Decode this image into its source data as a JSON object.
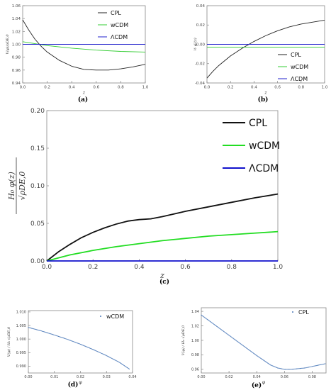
{
  "chart_data": [
    {
      "id": "a",
      "type": "line",
      "caption": "(a)",
      "xlabel": "z",
      "ylabel": "V(φ)/ρDE,0",
      "xlim": [
        0,
        1
      ],
      "ylim": [
        0.94,
        1.06
      ],
      "xticks": [
        0.0,
        0.2,
        0.4,
        0.6,
        0.8,
        1.0
      ],
      "xtick_labels": [
        "0.0",
        "0.2",
        "0.4",
        "0.6",
        "0.8",
        "1.0"
      ],
      "yticks": [
        0.94,
        0.96,
        0.98,
        1.0,
        1.02,
        1.04,
        1.06
      ],
      "ytick_labels": [
        "0.94",
        "0.96",
        "0.98",
        "1.00",
        "1.02",
        "1.04",
        "1.06"
      ],
      "legend_position": "top-right",
      "series": [
        {
          "name": "CPL",
          "color": "#222222",
          "x": [
            0,
            0.05,
            0.1,
            0.15,
            0.2,
            0.3,
            0.4,
            0.5,
            0.6,
            0.7,
            0.8,
            0.9,
            1.0
          ],
          "y": [
            1.038,
            1.022,
            1.008,
            0.997,
            0.988,
            0.975,
            0.966,
            0.961,
            0.96,
            0.96,
            0.962,
            0.965,
            0.969
          ]
        },
        {
          "name": "wCDM",
          "color": "#33cc33",
          "x": [
            0,
            0.1,
            0.2,
            0.4,
            0.6,
            0.8,
            1.0
          ],
          "y": [
            1.004,
            1.001,
            0.998,
            0.994,
            0.991,
            0.989,
            0.988
          ]
        },
        {
          "name": "ΛCDM",
          "color": "#2222cc",
          "x": [
            0,
            1.0
          ],
          "y": [
            1.0,
            1.0
          ]
        }
      ]
    },
    {
      "id": "b",
      "type": "line",
      "caption": "(b)",
      "xlabel": "z",
      "ylabel": "½ φ̇²(z)",
      "xlim": [
        0,
        1
      ],
      "ylim": [
        -0.04,
        0.04
      ],
      "xticks": [
        0.0,
        0.2,
        0.4,
        0.6,
        0.8,
        1.0
      ],
      "xtick_labels": [
        "0.0",
        "0.2",
        "0.4",
        "0.6",
        "0.8",
        "1.0"
      ],
      "yticks": [
        -0.04,
        -0.02,
        0.0,
        0.02,
        0.04
      ],
      "ytick_labels": [
        "-0.04",
        "-0.02",
        "0.00",
        "0.02",
        "0.04"
      ],
      "legend_position": "bottom-right",
      "series": [
        {
          "name": "CPL",
          "color": "#222222",
          "x": [
            0,
            0.05,
            0.1,
            0.2,
            0.3,
            0.4,
            0.5,
            0.6,
            0.7,
            0.8,
            0.9,
            1.0
          ],
          "y": [
            -0.035,
            -0.028,
            -0.022,
            -0.012,
            -0.004,
            0.003,
            0.009,
            0.014,
            0.018,
            0.021,
            0.023,
            0.025
          ]
        },
        {
          "name": "wCDM",
          "color": "#33cc33",
          "x": [
            0,
            1.0
          ],
          "y": [
            -0.003,
            -0.003
          ]
        },
        {
          "name": "ΛCDM",
          "color": "#2222cc",
          "x": [
            0,
            1.0
          ],
          "y": [
            0.0,
            0.0
          ]
        }
      ]
    },
    {
      "id": "c",
      "type": "line",
      "caption": "(c)",
      "xlabel": "z",
      "ylabel_num": "H₀ φ(z)",
      "ylabel_den": "√ρDE,0",
      "xlim": [
        0,
        1
      ],
      "ylim": [
        0,
        0.2
      ],
      "xticks": [
        0.0,
        0.2,
        0.4,
        0.6,
        0.8,
        1.0
      ],
      "xtick_labels": [
        "0.0",
        "0.2",
        "0.4",
        "0.6",
        "0.8",
        "1.0"
      ],
      "yticks": [
        0.0,
        0.05,
        0.1,
        0.15,
        0.2
      ],
      "ytick_labels": [
        "0.00",
        "0.05",
        "0.10",
        "0.15",
        "0.20"
      ],
      "legend_position": "top-right",
      "series": [
        {
          "name": "CPL",
          "color": "#111111",
          "x": [
            0,
            0.05,
            0.1,
            0.15,
            0.2,
            0.25,
            0.3,
            0.35,
            0.4,
            0.45,
            0.5,
            0.6,
            0.7,
            0.8,
            0.9,
            1.0
          ],
          "y": [
            0,
            0.012,
            0.022,
            0.031,
            0.038,
            0.044,
            0.049,
            0.053,
            0.055,
            0.056,
            0.059,
            0.066,
            0.072,
            0.078,
            0.084,
            0.089
          ]
        },
        {
          "name": "wCDM",
          "color": "#22dd22",
          "x": [
            0,
            0.1,
            0.2,
            0.3,
            0.4,
            0.5,
            0.6,
            0.7,
            0.8,
            0.9,
            1.0
          ],
          "y": [
            0,
            0.008,
            0.014,
            0.019,
            0.023,
            0.027,
            0.03,
            0.033,
            0.035,
            0.037,
            0.039
          ]
        },
        {
          "name": "ΛCDM",
          "color": "#1111cc",
          "x": [
            0,
            1.0
          ],
          "y": [
            0,
            0
          ]
        }
      ]
    },
    {
      "id": "d",
      "type": "scatter",
      "caption": "(d)",
      "xlabel": "φ",
      "ylabel": "V(φ) / H₀ √ρDE,0",
      "xlim": [
        0,
        0.04
      ],
      "ylim": [
        0.9875,
        1.0105
      ],
      "xticks": [
        0.0,
        0.01,
        0.02,
        0.03,
        0.04
      ],
      "xtick_labels": [
        "0.00",
        "0.01",
        "0.02",
        "0.03",
        "0.04"
      ],
      "yticks": [
        0.99,
        0.995,
        1.0,
        1.005,
        1.01
      ],
      "ytick_labels": [
        "0.990",
        "0.995",
        "1.000",
        "1.005",
        "1.010"
      ],
      "legend_position": "top-right",
      "series": [
        {
          "name": "wCDM",
          "color": "#4a78b8",
          "x": [
            0.0,
            0.005,
            0.01,
            0.015,
            0.02,
            0.025,
            0.03,
            0.035,
            0.039
          ],
          "y": [
            1.0043,
            1.003,
            1.0015,
            0.9999,
            0.9981,
            0.9961,
            0.9939,
            0.9914,
            0.9888
          ]
        }
      ]
    },
    {
      "id": "e",
      "type": "scatter",
      "caption": "(e)",
      "xlabel": "φ",
      "ylabel": "V(φ) / H₀ √ρDE,0",
      "xlim": [
        0,
        0.09
      ],
      "ylim": [
        0.955,
        1.045
      ],
      "xticks": [
        0.0,
        0.02,
        0.04,
        0.06,
        0.08
      ],
      "xtick_labels": [
        "0.00",
        "0.02",
        "0.04",
        "0.06",
        "0.08"
      ],
      "yticks": [
        0.96,
        0.98,
        1.0,
        1.02,
        1.04
      ],
      "ytick_labels": [
        "0.96",
        "0.98",
        "1.00",
        "1.02",
        "1.04"
      ],
      "legend_position": "top-right",
      "series": [
        {
          "name": "CPL",
          "color": "#4a78b8",
          "x": [
            0.0,
            0.01,
            0.02,
            0.03,
            0.04,
            0.05,
            0.055,
            0.06,
            0.065,
            0.07,
            0.075,
            0.08,
            0.09
          ],
          "y": [
            1.035,
            1.021,
            1.007,
            0.993,
            0.979,
            0.966,
            0.962,
            0.96,
            0.96,
            0.961,
            0.962,
            0.964,
            0.968
          ]
        }
      ]
    }
  ]
}
